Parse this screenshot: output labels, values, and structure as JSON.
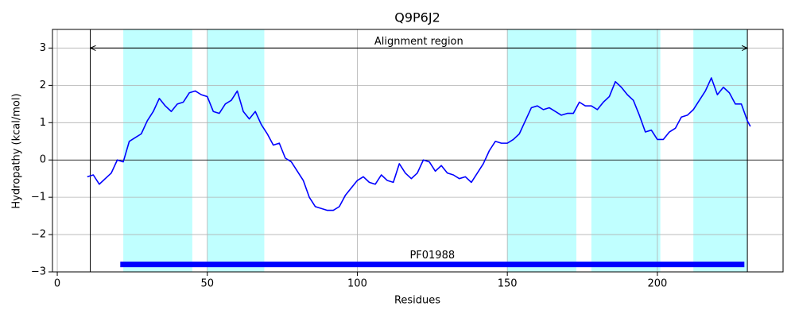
{
  "chart_data": {
    "type": "line",
    "title": "Q9P6J2",
    "x_label": "Residues",
    "y_label": "Hydropathy (kcal/mol)",
    "xlim": [
      -1.6,
      241.9
    ],
    "ylim": [
      -3,
      3.5
    ],
    "xticks": [
      0,
      50,
      100,
      150,
      200
    ],
    "yticks": [
      {
        "value": -3,
        "label": "−3"
      },
      {
        "value": -2,
        "label": "−2"
      },
      {
        "value": -1,
        "label": "−1"
      },
      0,
      1,
      2,
      3
    ],
    "grid": true,
    "zero_line": 0,
    "color": "#0000ff",
    "x": [
      10,
      12,
      14,
      16,
      18,
      20,
      22,
      24,
      26,
      28,
      30,
      32,
      34,
      36,
      38,
      40,
      42,
      44,
      46,
      48,
      50,
      52,
      54,
      56,
      58,
      60,
      62,
      64,
      66,
      68,
      70,
      72,
      74,
      76,
      78,
      80,
      82,
      84,
      86,
      88,
      90,
      92,
      94,
      96,
      98,
      100,
      102,
      104,
      106,
      108,
      110,
      112,
      114,
      116,
      118,
      120,
      122,
      124,
      126,
      128,
      130,
      132,
      134,
      136,
      138,
      140,
      142,
      144,
      146,
      148,
      150,
      152,
      154,
      156,
      158,
      160,
      162,
      164,
      166,
      168,
      170,
      172,
      174,
      176,
      178,
      180,
      182,
      184,
      186,
      188,
      190,
      192,
      194,
      196,
      198,
      200,
      202,
      204,
      206,
      208,
      210,
      212,
      214,
      216,
      218,
      220,
      222,
      224,
      226,
      228,
      230,
      231
    ],
    "values": [
      -0.45,
      -0.4,
      -0.65,
      -0.5,
      -0.35,
      0.0,
      -0.05,
      0.5,
      0.6,
      0.7,
      1.05,
      1.3,
      1.65,
      1.45,
      1.3,
      1.5,
      1.55,
      1.8,
      1.85,
      1.75,
      1.7,
      1.3,
      1.25,
      1.5,
      1.6,
      1.85,
      1.3,
      1.1,
      1.3,
      0.95,
      0.7,
      0.4,
      0.45,
      0.05,
      -0.05,
      -0.3,
      -0.55,
      -1.0,
      -1.25,
      -1.3,
      -1.35,
      -1.35,
      -1.25,
      -0.95,
      -0.75,
      -0.55,
      -0.45,
      -0.6,
      -0.65,
      -0.4,
      -0.55,
      -0.6,
      -0.1,
      -0.35,
      -0.5,
      -0.35,
      0.0,
      -0.05,
      -0.3,
      -0.15,
      -0.35,
      -0.4,
      -0.5,
      -0.45,
      -0.6,
      -0.35,
      -0.1,
      0.25,
      0.5,
      0.45,
      0.45,
      0.55,
      0.7,
      1.05,
      1.4,
      1.45,
      1.35,
      1.4,
      1.3,
      1.2,
      1.25,
      1.25,
      1.55,
      1.45,
      1.45,
      1.35,
      1.55,
      1.7,
      2.1,
      1.95,
      1.75,
      1.6,
      1.2,
      0.75,
      0.8,
      0.55,
      0.55,
      0.75,
      0.85,
      1.15,
      1.2,
      1.35,
      1.6,
      1.85,
      2.2,
      1.75,
      1.95,
      1.8,
      1.5,
      1.5,
      1.05,
      0.9
    ],
    "shaded_regions": [
      [
        22,
        45
      ],
      [
        50,
        69
      ],
      [
        150,
        173
      ],
      [
        178,
        201
      ],
      [
        212,
        230
      ]
    ],
    "shade_color": "#c0ffff",
    "alignment_region": {
      "label": "Alignment region",
      "start": 11,
      "end": 230,
      "y": 3
    },
    "domain": {
      "label": "PF01988",
      "start": 21,
      "end": 229,
      "y": -2.8,
      "color": "#0000ff"
    }
  }
}
